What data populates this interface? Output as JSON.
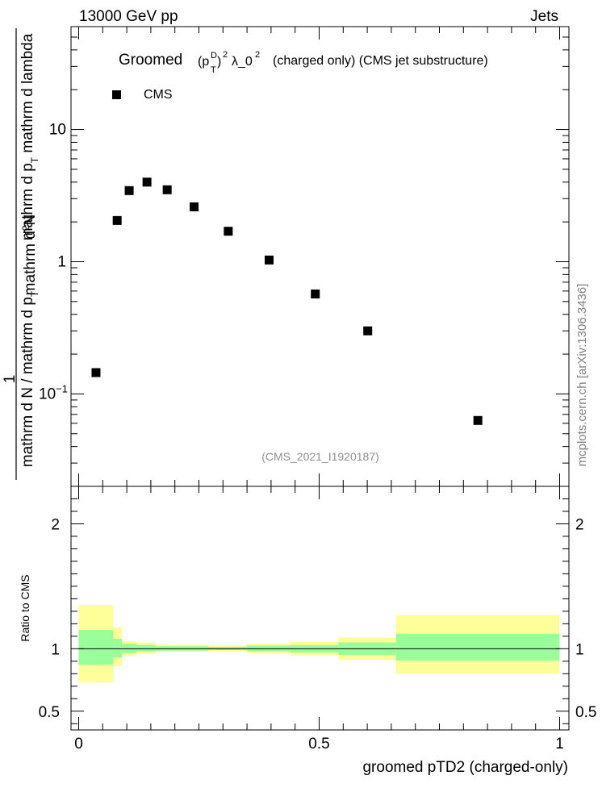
{
  "header": {
    "left": "13000 GeV pp",
    "right": "Jets"
  },
  "side_label": "mcplots.cern.ch [arXiv:1306.3436]",
  "chart_data": [
    {
      "type": "scatter",
      "title_parts": {
        "groomed": "Groomed",
        "obs": "(p_T^D)^2 λ_0^2",
        "rest": "(charged only) (CMS jet substructure)"
      },
      "watermark": "(CMS_2021_I1920187)",
      "ylabel_parts": {
        "one": "1",
        "den": "mathrm d N / mathrm d p_T",
        "num": "mathrm d^2N",
        "den2": "mathrm d p_T mathrm d lambda"
      },
      "yscale": "log",
      "ylim": [
        0.02,
        60
      ],
      "xlim": [
        0,
        1
      ],
      "yticks": [
        {
          "value": 10,
          "label": "10"
        },
        {
          "value": 1,
          "label": "1"
        },
        {
          "value": 0.1,
          "label": "10^-1"
        }
      ],
      "legend": {
        "position": "top-left",
        "entries": [
          {
            "label": "CMS",
            "marker": "square"
          }
        ]
      },
      "series": [
        {
          "name": "CMS",
          "x": [
            0.036,
            0.08,
            0.105,
            0.142,
            0.184,
            0.24,
            0.311,
            0.396,
            0.492,
            0.601,
            0.83
          ],
          "y": [
            0.145,
            2.05,
            3.45,
            4.0,
            3.5,
            2.6,
            1.7,
            1.03,
            0.57,
            0.3,
            0.063
          ]
        }
      ]
    },
    {
      "type": "area",
      "ylabel": "Ratio to CMS",
      "xlabel": "groomed pTD2 (charged-only)",
      "xlim": [
        0,
        1
      ],
      "ylim": [
        0.35,
        2.3
      ],
      "yticks": [
        {
          "value": 2,
          "label": "2"
        },
        {
          "value": 1,
          "label": "1"
        },
        {
          "value": 0.5,
          "label": "0.5"
        }
      ],
      "xticks": [
        {
          "value": 0,
          "label": "0"
        },
        {
          "value": 0.5,
          "label": "0.5"
        },
        {
          "value": 1,
          "label": "1"
        }
      ],
      "reference_line": 1,
      "bins": [
        {
          "lo": 0.0,
          "hi": 0.072,
          "inner": [
            0.87,
            1.15
          ],
          "outer": [
            0.73,
            1.35
          ]
        },
        {
          "lo": 0.072,
          "hi": 0.09,
          "inner": [
            0.93,
            1.08
          ],
          "outer": [
            0.86,
            1.17
          ]
        },
        {
          "lo": 0.09,
          "hi": 0.12,
          "inner": [
            0.965,
            1.04
          ],
          "outer": [
            0.94,
            1.06
          ]
        },
        {
          "lo": 0.12,
          "hi": 0.16,
          "inner": [
            0.98,
            1.03
          ],
          "outer": [
            0.96,
            1.05
          ]
        },
        {
          "lo": 0.16,
          "hi": 0.27,
          "inner": [
            0.985,
            1.02
          ],
          "outer": [
            0.975,
            1.035
          ]
        },
        {
          "lo": 0.27,
          "hi": 0.35,
          "inner": [
            0.99,
            1.015
          ],
          "outer": [
            0.98,
            1.025
          ]
        },
        {
          "lo": 0.35,
          "hi": 0.44,
          "inner": [
            0.98,
            1.025
          ],
          "outer": [
            0.965,
            1.04
          ]
        },
        {
          "lo": 0.44,
          "hi": 0.54,
          "inner": [
            0.97,
            1.03
          ],
          "outer": [
            0.945,
            1.055
          ]
        },
        {
          "lo": 0.54,
          "hi": 0.66,
          "inner": [
            0.95,
            1.05
          ],
          "outer": [
            0.91,
            1.09
          ]
        },
        {
          "lo": 0.66,
          "hi": 1.0,
          "inner": [
            0.905,
            1.12
          ],
          "outer": [
            0.8,
            1.27
          ]
        }
      ],
      "colors": {
        "inner": "#99ff99",
        "outer": "#ffff99",
        "marker": "#000000"
      }
    }
  ]
}
